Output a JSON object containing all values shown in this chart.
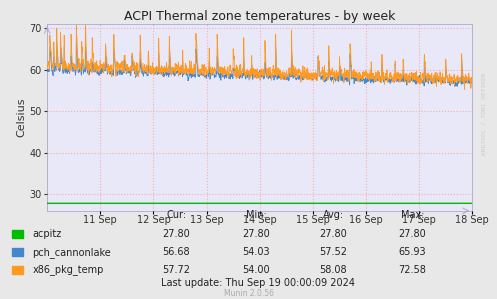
{
  "title": "ACPI Thermal zone temperatures - by week",
  "ylabel": "Celsius",
  "ylim": [
    26,
    71
  ],
  "ytick_positions": [
    30,
    40,
    50,
    60,
    70
  ],
  "background_color": "#e8e8e8",
  "plot_bg_color": "#e8e8f8",
  "grid_color": "#ffaaaa",
  "grid_style": ":",
  "x_labels": [
    "11 Sep",
    "12 Sep",
    "13 Sep",
    "14 Sep",
    "15 Sep",
    "16 Sep",
    "17 Sep",
    "18 Sep"
  ],
  "x_tick_count": 8,
  "legend_entries": [
    {
      "label": "acpitz",
      "color": "#00bb00"
    },
    {
      "label": "pch_cannonlake",
      "color": "#4488cc"
    },
    {
      "label": "x86_pkg_temp",
      "color": "#ff9922"
    }
  ],
  "table_headers": [
    "Cur:",
    "Min:",
    "Avg:",
    "Max:"
  ],
  "table_data": [
    [
      "27.80",
      "27.80",
      "27.80",
      "27.80"
    ],
    [
      "56.68",
      "54.03",
      "57.52",
      "65.93"
    ],
    [
      "57.72",
      "54.00",
      "58.08",
      "72.58"
    ]
  ],
  "last_update": "Last update: Thu Sep 19 00:00:09 2024",
  "munin_version": "Munin 2.0.56",
  "acpitz_value": 27.8,
  "watermark": "RRDTOOL / TOBI OETIKER"
}
